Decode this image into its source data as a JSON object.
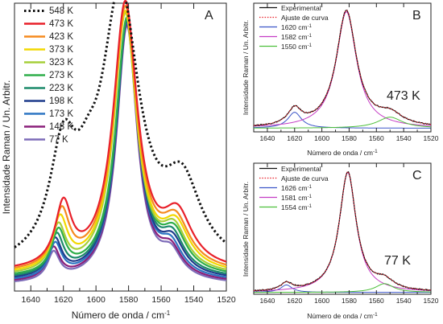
{
  "panels": [
    {
      "id": "A",
      "letter": "A",
      "xlabel": "Número de onda / cm",
      "xlabel_sup": "-1",
      "ylabel": "Intensidade Raman / Un. Arbitr.",
      "xticks": [
        1640,
        1620,
        1600,
        1580,
        1560,
        1540,
        1520
      ],
      "xlim": [
        1650,
        1520
      ],
      "legend": [
        {
          "label": "548 K",
          "color": "#111111",
          "dash": "dotted"
        },
        {
          "label": "473 K",
          "color": "#e8202a",
          "dash": "solid"
        },
        {
          "label": "423 K",
          "color": "#f58a1f",
          "dash": "solid"
        },
        {
          "label": "373 K",
          "color": "#f2d800",
          "dash": "solid"
        },
        {
          "label": "323 K",
          "color": "#a6cf3a",
          "dash": "solid"
        },
        {
          "label": "273 K",
          "color": "#2fae4a",
          "dash": "solid"
        },
        {
          "label": "223 K",
          "color": "#1c8a6a",
          "dash": "solid"
        },
        {
          "label": "198 K",
          "color": "#1f3c8c",
          "dash": "solid"
        },
        {
          "label": "173 K",
          "color": "#2b74c2",
          "dash": "solid"
        },
        {
          "label": "148 K",
          "color": "#8a1f7a",
          "dash": "solid"
        },
        {
          "label": "77 K",
          "color": "#7d6bb8",
          "dash": "solid"
        }
      ]
    },
    {
      "id": "B",
      "letter": "B",
      "temperature": "473 K",
      "xlabel": "Número de onda / cm",
      "xlabel_sup": "-1",
      "ylabel": "Intensidade Raman / Un. Arbitr.",
      "xticks": [
        1640,
        1620,
        1600,
        1580,
        1560,
        1540,
        1520
      ],
      "xlim": [
        1650,
        1520
      ],
      "legend": [
        {
          "label": "Experimental",
          "sup": "",
          "color": "#111111",
          "dash": "solid"
        },
        {
          "label": "Ajuste de curva",
          "sup": "",
          "color": "#e8202a",
          "dash": "dotted"
        },
        {
          "label": "1620 cm",
          "sup": "-1",
          "color": "#3c55c8",
          "dash": "solid"
        },
        {
          "label": "1582 cm",
          "sup": "-1",
          "color": "#c43cc4",
          "dash": "solid"
        },
        {
          "label": "1550 cm",
          "sup": "-1",
          "color": "#4cbf3a",
          "dash": "solid"
        }
      ]
    },
    {
      "id": "C",
      "letter": "C",
      "temperature": "77 K",
      "xlabel": "Número de onda / cm",
      "xlabel_sup": "-1",
      "ylabel": "Intensidade Raman / Un. Arbitr.",
      "xticks": [
        1640,
        1620,
        1600,
        1580,
        1560,
        1540,
        1520
      ],
      "xlim": [
        1650,
        1520
      ],
      "legend": [
        {
          "label": "Experimental",
          "sup": "",
          "color": "#111111",
          "dash": "solid"
        },
        {
          "label": "Ajuste de curva",
          "sup": "",
          "color": "#e8202a",
          "dash": "dotted"
        },
        {
          "label": "1626 cm",
          "sup": "-1",
          "color": "#3c55c8",
          "dash": "solid"
        },
        {
          "label": "1581 cm",
          "sup": "-1",
          "color": "#c43cc4",
          "dash": "solid"
        },
        {
          "label": "1554 cm",
          "sup": "-1",
          "color": "#4cbf3a",
          "dash": "solid"
        }
      ]
    }
  ],
  "chart_data": [
    {
      "type": "line",
      "panel": "A",
      "xlabel": "Número de onda / cm-1",
      "ylabel": "Intensidade Raman / Un. Arbitr.",
      "xlim": [
        1650,
        1520
      ],
      "ylim": [
        0,
        1.05
      ],
      "series": [
        {
          "name": "548 K",
          "peaks": [
            {
              "center": 1585,
              "height": 0.97,
              "width": 14
            },
            {
              "center": 1620,
              "height": 0.38,
              "width": 10
            },
            {
              "center": 1547,
              "height": 0.27,
              "width": 14
            },
            {
              "center": 1605,
              "height": 0.12,
              "width": 8
            }
          ],
          "baseline": 0.07
        },
        {
          "name": "473 K",
          "peaks": [
            {
              "center": 1582,
              "height": 0.97,
              "width": 9
            },
            {
              "center": 1620,
              "height": 0.22,
              "width": 6
            },
            {
              "center": 1550,
              "height": 0.18,
              "width": 11
            }
          ],
          "baseline": 0.065
        },
        {
          "name": "423 K",
          "peaks": [
            {
              "center": 1582,
              "height": 0.96,
              "width": 8.8
            },
            {
              "center": 1621,
              "height": 0.2,
              "width": 5.8
            },
            {
              "center": 1551,
              "height": 0.16,
              "width": 10.5
            }
          ],
          "baseline": 0.06
        },
        {
          "name": "373 K",
          "peaks": [
            {
              "center": 1582,
              "height": 0.95,
              "width": 8.6
            },
            {
              "center": 1622,
              "height": 0.18,
              "width": 5.6
            },
            {
              "center": 1551,
              "height": 0.15,
              "width": 10
            }
          ],
          "baseline": 0.055
        },
        {
          "name": "323 K",
          "peaks": [
            {
              "center": 1582,
              "height": 0.95,
              "width": 8.4
            },
            {
              "center": 1623,
              "height": 0.16,
              "width": 5.4
            },
            {
              "center": 1552,
              "height": 0.14,
              "width": 9.6
            }
          ],
          "baseline": 0.05
        },
        {
          "name": "273 K",
          "peaks": [
            {
              "center": 1581,
              "height": 0.94,
              "width": 8.2
            },
            {
              "center": 1623,
              "height": 0.15,
              "width": 5.2
            },
            {
              "center": 1552,
              "height": 0.13,
              "width": 9.2
            }
          ],
          "baseline": 0.045
        },
        {
          "name": "223 K",
          "peaks": [
            {
              "center": 1581,
              "height": 0.94,
              "width": 8.0
            },
            {
              "center": 1624,
              "height": 0.14,
              "width": 5
            },
            {
              "center": 1553,
              "height": 0.12,
              "width": 8.8
            }
          ],
          "baseline": 0.04
        },
        {
          "name": "198 K",
          "peaks": [
            {
              "center": 1581,
              "height": 0.94,
              "width": 7.9
            },
            {
              "center": 1625,
              "height": 0.13,
              "width": 4.9
            },
            {
              "center": 1553,
              "height": 0.11,
              "width": 8.6
            }
          ],
          "baseline": 0.035
        },
        {
          "name": "173 K",
          "peaks": [
            {
              "center": 1581,
              "height": 0.94,
              "width": 7.8
            },
            {
              "center": 1625,
              "height": 0.12,
              "width": 4.8
            },
            {
              "center": 1554,
              "height": 0.1,
              "width": 8.4
            }
          ],
          "baseline": 0.03
        },
        {
          "name": "148 K",
          "peaks": [
            {
              "center": 1581,
              "height": 0.94,
              "width": 7.7
            },
            {
              "center": 1626,
              "height": 0.11,
              "width": 4.7
            },
            {
              "center": 1554,
              "height": 0.09,
              "width": 8.2
            }
          ],
          "baseline": 0.025
        },
        {
          "name": "77 K",
          "peaks": [
            {
              "center": 1581,
              "height": 0.94,
              "width": 7.6
            },
            {
              "center": 1626,
              "height": 0.1,
              "width": 4.6
            },
            {
              "center": 1554,
              "height": 0.085,
              "width": 8
            }
          ],
          "baseline": 0.02
        }
      ]
    },
    {
      "type": "line",
      "panel": "B",
      "xlabel": "Número de onda / cm-1",
      "ylabel": "Intensidade Raman / Un. Arbitr.",
      "xlim": [
        1650,
        1520
      ],
      "ylim": [
        0,
        1.05
      ],
      "baseline": 0.03,
      "components": [
        {
          "name": "1620 cm-1",
          "center": 1620,
          "height": 0.13,
          "width": 6
        },
        {
          "name": "1582 cm-1",
          "center": 1582,
          "height": 0.95,
          "width": 9
        },
        {
          "name": "1550 cm-1",
          "center": 1550,
          "height": 0.09,
          "width": 11
        }
      ]
    },
    {
      "type": "line",
      "panel": "C",
      "xlabel": "Número de onda / cm-1",
      "ylabel": "Intensidade Raman / Un. Arbitr.",
      "xlim": [
        1650,
        1520
      ],
      "ylim": [
        0,
        1.05
      ],
      "baseline": 0.015,
      "components": [
        {
          "name": "1626 cm-1",
          "center": 1626,
          "height": 0.06,
          "width": 5
        },
        {
          "name": "1581 cm-1",
          "center": 1581,
          "height": 0.96,
          "width": 7.5
        },
        {
          "name": "1554 cm-1",
          "center": 1554,
          "height": 0.07,
          "width": 8
        }
      ]
    }
  ]
}
